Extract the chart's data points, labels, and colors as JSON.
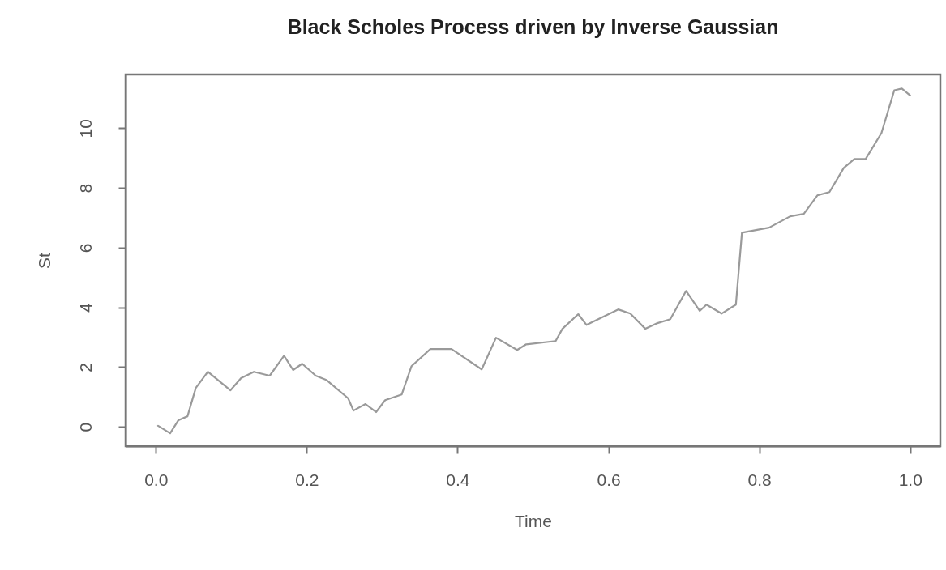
{
  "chart_data": {
    "type": "line",
    "title": "Black Scholes Process driven by Inverse Gaussian",
    "xlabel": "Time",
    "ylabel": "St",
    "xlim": [
      -0.04,
      1.04
    ],
    "ylim": [
      -0.65,
      11.8
    ],
    "xticks": [
      {
        "value": 0,
        "label": "0.0"
      },
      0.2,
      0.4,
      0.6,
      0.8,
      {
        "value": 1,
        "label": "1.0"
      }
    ],
    "yticks": [
      0,
      2,
      4,
      6,
      8,
      10
    ],
    "grid": false,
    "marker": "none",
    "line_style": "solid",
    "x": [
      0.003,
      0.019,
      0.03,
      0.042,
      0.053,
      0.069,
      0.099,
      0.113,
      0.13,
      0.151,
      0.17,
      0.182,
      0.194,
      0.212,
      0.226,
      0.255,
      0.262,
      0.278,
      0.292,
      0.304,
      0.326,
      0.339,
      0.364,
      0.392,
      0.432,
      0.451,
      0.479,
      0.491,
      0.53,
      0.539,
      0.56,
      0.571,
      0.613,
      0.629,
      0.649,
      0.665,
      0.682,
      0.703,
      0.721,
      0.73,
      0.75,
      0.769,
      0.777,
      0.813,
      0.841,
      0.859,
      0.877,
      0.893,
      0.912,
      0.926,
      0.941,
      0.962,
      0.979,
      0.989,
      1.0
    ],
    "series": [
      {
        "color": "#9a9a9a",
        "values": [
          0.03,
          -0.22,
          0.22,
          0.35,
          1.3,
          1.84,
          1.22,
          1.63,
          1.84,
          1.71,
          2.38,
          1.9,
          2.11,
          1.71,
          1.57,
          0.95,
          0.54,
          0.76,
          0.49,
          0.89,
          1.08,
          2.03,
          2.6,
          2.6,
          1.92,
          2.98,
          2.57,
          2.76,
          2.87,
          3.28,
          3.77,
          3.41,
          3.93,
          3.79,
          3.28,
          3.47,
          3.6,
          4.55,
          3.88,
          4.09,
          3.79,
          4.09,
          6.5,
          6.67,
          7.05,
          7.13,
          7.75,
          7.86,
          8.67,
          8.97,
          8.97,
          9.84,
          11.27,
          11.33,
          11.1
        ]
      }
    ]
  }
}
